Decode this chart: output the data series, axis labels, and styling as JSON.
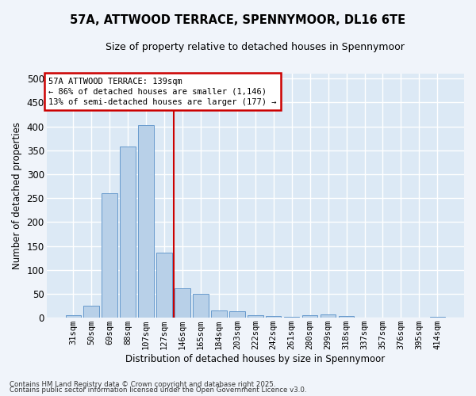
{
  "title1": "57A, ATTWOOD TERRACE, SPENNYMOOR, DL16 6TE",
  "title2": "Size of property relative to detached houses in Spennymoor",
  "xlabel": "Distribution of detached houses by size in Spennymoor",
  "ylabel": "Number of detached properties",
  "categories": [
    "31sqm",
    "50sqm",
    "69sqm",
    "88sqm",
    "107sqm",
    "127sqm",
    "146sqm",
    "165sqm",
    "184sqm",
    "203sqm",
    "222sqm",
    "242sqm",
    "261sqm",
    "280sqm",
    "299sqm",
    "318sqm",
    "337sqm",
    "357sqm",
    "376sqm",
    "395sqm",
    "414sqm"
  ],
  "values": [
    6,
    25,
    260,
    357,
    403,
    136,
    62,
    50,
    16,
    13,
    6,
    4,
    2,
    6,
    7,
    4,
    1,
    1,
    0,
    1,
    2
  ],
  "bar_color": "#b8d0e8",
  "bar_edge_color": "#6699cc",
  "plot_bg_color": "#dce9f5",
  "fig_bg_color": "#f0f4fa",
  "grid_color": "#ffffff",
  "vline_color": "#cc0000",
  "property_line_x": 5.5,
  "annotation_text1": "57A ATTWOOD TERRACE: 139sqm",
  "annotation_text2": "← 86% of detached houses are smaller (1,146)",
  "annotation_text3": "13% of semi-detached houses are larger (177) →",
  "footnote1": "Contains HM Land Registry data © Crown copyright and database right 2025.",
  "footnote2": "Contains public sector information licensed under the Open Government Licence v3.0.",
  "ylim": [
    0,
    510
  ],
  "yticks": [
    0,
    50,
    100,
    150,
    200,
    250,
    300,
    350,
    400,
    450,
    500
  ]
}
